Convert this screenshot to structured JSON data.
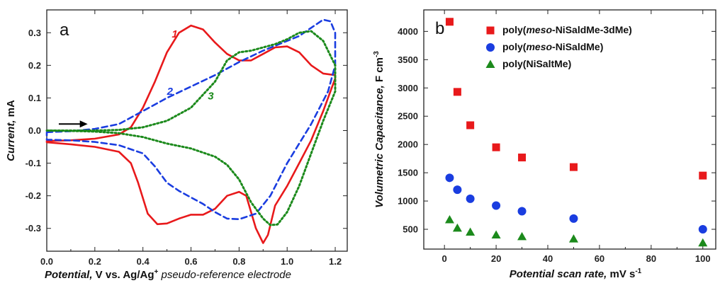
{
  "chart_data": [
    {
      "type": "line",
      "panel_label": "a",
      "xlabel": {
        "italic": "Potential,",
        "plain": " V vs. Ag/Ag",
        "sup": "+",
        "tail": " pseudo-reference electrode"
      },
      "ylabel": {
        "italic": "Current,",
        "plain": " mA"
      },
      "xlim": [
        0.0,
        1.25
      ],
      "ylim": [
        -0.37,
        0.37
      ],
      "xticks": [
        "0.0",
        "0.2",
        "0.4",
        "0.6",
        "0.8",
        "1.0",
        "1.2"
      ],
      "yticks": [
        "-0.3",
        "-0.2",
        "-0.1",
        "0.0",
        "0.1",
        "0.2",
        "0.3"
      ],
      "arrow": {
        "from": [
          0.05,
          0.02
        ],
        "to": [
          0.17,
          0.02
        ]
      },
      "series": [
        {
          "label": "1",
          "color": "#e8191b",
          "style": "solid",
          "points": [
            [
              0.0,
              -0.032
            ],
            [
              0.1,
              -0.03
            ],
            [
              0.2,
              -0.025
            ],
            [
              0.3,
              -0.012
            ],
            [
              0.35,
              0.01
            ],
            [
              0.4,
              0.07
            ],
            [
              0.45,
              0.15
            ],
            [
              0.5,
              0.24
            ],
            [
              0.55,
              0.3
            ],
            [
              0.6,
              0.322
            ],
            [
              0.65,
              0.31
            ],
            [
              0.7,
              0.27
            ],
            [
              0.75,
              0.235
            ],
            [
              0.8,
              0.215
            ],
            [
              0.85,
              0.215
            ],
            [
              0.9,
              0.235
            ],
            [
              0.95,
              0.255
            ],
            [
              1.0,
              0.258
            ],
            [
              1.05,
              0.24
            ],
            [
              1.1,
              0.2
            ],
            [
              1.15,
              0.175
            ],
            [
              1.2,
              0.17
            ],
            [
              1.2,
              0.16
            ],
            [
              1.15,
              0.06
            ],
            [
              1.1,
              -0.03
            ],
            [
              1.05,
              -0.1
            ],
            [
              1.0,
              -0.17
            ],
            [
              0.95,
              -0.23
            ],
            [
              0.92,
              -0.32
            ],
            [
              0.9,
              -0.345
            ],
            [
              0.87,
              -0.3
            ],
            [
              0.83,
              -0.2
            ],
            [
              0.8,
              -0.188
            ],
            [
              0.75,
              -0.2
            ],
            [
              0.7,
              -0.24
            ],
            [
              0.65,
              -0.258
            ],
            [
              0.6,
              -0.258
            ],
            [
              0.55,
              -0.27
            ],
            [
              0.5,
              -0.285
            ],
            [
              0.46,
              -0.287
            ],
            [
              0.42,
              -0.255
            ],
            [
              0.38,
              -0.16
            ],
            [
              0.35,
              -0.1
            ],
            [
              0.3,
              -0.065
            ],
            [
              0.2,
              -0.05
            ],
            [
              0.1,
              -0.042
            ],
            [
              0.0,
              -0.036
            ]
          ]
        },
        {
          "label": "2",
          "color": "#1a3de0",
          "style": "dashed",
          "points": [
            [
              0.0,
              -0.005
            ],
            [
              0.1,
              -0.002
            ],
            [
              0.2,
              0.005
            ],
            [
              0.3,
              0.02
            ],
            [
              0.4,
              0.06
            ],
            [
              0.5,
              0.1
            ],
            [
              0.6,
              0.135
            ],
            [
              0.7,
              0.17
            ],
            [
              0.8,
              0.21
            ],
            [
              0.9,
              0.245
            ],
            [
              1.0,
              0.275
            ],
            [
              1.05,
              0.29
            ],
            [
              1.1,
              0.315
            ],
            [
              1.15,
              0.34
            ],
            [
              1.18,
              0.335
            ],
            [
              1.2,
              0.3
            ],
            [
              1.2,
              0.2
            ],
            [
              1.17,
              0.12
            ],
            [
              1.1,
              0.02
            ],
            [
              1.0,
              -0.1
            ],
            [
              0.93,
              -0.2
            ],
            [
              0.87,
              -0.255
            ],
            [
              0.8,
              -0.272
            ],
            [
              0.75,
              -0.27
            ],
            [
              0.7,
              -0.25
            ],
            [
              0.65,
              -0.225
            ],
            [
              0.6,
              -0.205
            ],
            [
              0.55,
              -0.185
            ],
            [
              0.5,
              -0.16
            ],
            [
              0.45,
              -0.11
            ],
            [
              0.4,
              -0.07
            ],
            [
              0.3,
              -0.045
            ],
            [
              0.2,
              -0.035
            ],
            [
              0.1,
              -0.03
            ],
            [
              0.0,
              -0.028
            ]
          ]
        },
        {
          "label": "3",
          "color": "#1c8a1c",
          "style": "dotted",
          "points": [
            [
              0.0,
              0.0
            ],
            [
              0.2,
              0.0
            ],
            [
              0.3,
              0.002
            ],
            [
              0.4,
              0.01
            ],
            [
              0.5,
              0.03
            ],
            [
              0.6,
              0.07
            ],
            [
              0.7,
              0.15
            ],
            [
              0.75,
              0.215
            ],
            [
              0.8,
              0.24
            ],
            [
              0.85,
              0.245
            ],
            [
              0.9,
              0.255
            ],
            [
              0.95,
              0.265
            ],
            [
              1.0,
              0.28
            ],
            [
              1.05,
              0.3
            ],
            [
              1.1,
              0.305
            ],
            [
              1.15,
              0.275
            ],
            [
              1.2,
              0.2
            ],
            [
              1.2,
              0.12
            ],
            [
              1.15,
              0.03
            ],
            [
              1.1,
              -0.07
            ],
            [
              1.05,
              -0.17
            ],
            [
              1.0,
              -0.25
            ],
            [
              0.96,
              -0.288
            ],
            [
              0.93,
              -0.29
            ],
            [
              0.9,
              -0.27
            ],
            [
              0.85,
              -0.22
            ],
            [
              0.8,
              -0.15
            ],
            [
              0.75,
              -0.105
            ],
            [
              0.7,
              -0.08
            ],
            [
              0.6,
              -0.055
            ],
            [
              0.5,
              -0.04
            ],
            [
              0.4,
              -0.02
            ],
            [
              0.3,
              -0.008
            ],
            [
              0.2,
              -0.003
            ],
            [
              0.1,
              -0.001
            ],
            [
              0.0,
              0.0
            ]
          ]
        }
      ]
    },
    {
      "type": "scatter",
      "panel_label": "b",
      "xlabel": {
        "italic": "Potential scan rate,",
        "plain": " mV s",
        "sup": "-1"
      },
      "ylabel": {
        "italic": "Volumetric Capacitance,",
        "plain": " F cm",
        "sup": "-3"
      },
      "xlim": [
        -8,
        105
      ],
      "ylim": [
        150,
        4380
      ],
      "xticks": [
        "0",
        "20",
        "40",
        "60",
        "80",
        "100"
      ],
      "yticks": [
        "500",
        "1000",
        "1500",
        "2000",
        "2500",
        "3000",
        "3500",
        "4000"
      ],
      "legend_position": "top",
      "series": [
        {
          "name_pre": "poly(",
          "name_italic": "meso",
          "name_post": "-NiSaldMe-3dMe)",
          "color": "#e8191b",
          "marker": "square",
          "x": [
            2,
            5,
            10,
            20,
            30,
            50,
            100
          ],
          "y": [
            4170,
            2930,
            2340,
            1950,
            1770,
            1600,
            1450
          ]
        },
        {
          "name_pre": "poly(",
          "name_italic": "meso",
          "name_post": "-NiSaldMe)",
          "color": "#1a3de0",
          "marker": "circle",
          "x": [
            2,
            5,
            10,
            20,
            30,
            50,
            100
          ],
          "y": [
            1410,
            1200,
            1040,
            920,
            820,
            690,
            500
          ]
        },
        {
          "name_pre": "poly(",
          "name_italic": "",
          "name_post": "NiSaltMe)",
          "color": "#1c8a1c",
          "marker": "triangle",
          "x": [
            2,
            5,
            10,
            20,
            30,
            50,
            100
          ],
          "y": [
            670,
            520,
            450,
            400,
            370,
            330,
            260
          ]
        }
      ]
    }
  ]
}
